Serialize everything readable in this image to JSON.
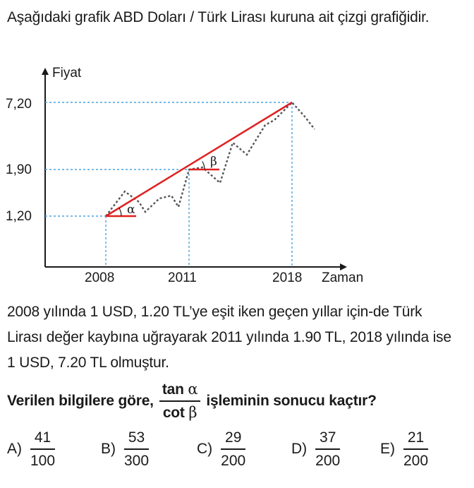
{
  "intro": "Aşağıdaki grafik ABD Doları / Türk Lirası kuruna ait çizgi grafiğidir.",
  "chart_data": {
    "type": "line",
    "ylabel": "Fiyat",
    "xlabel": "Zaman",
    "x_ticks": [
      "2008",
      "2011",
      "2018"
    ],
    "y_ticks": [
      "7,20",
      "1,90",
      "1,20"
    ],
    "points": [
      {
        "x": "2008",
        "y": 1.2
      },
      {
        "x": "2011",
        "y": 1.9
      },
      {
        "x": "2018",
        "y": 7.2
      }
    ],
    "angle_labels": [
      "α",
      "β"
    ],
    "colors": {
      "trend": "#e02020",
      "curve": "#555555",
      "guide": "#4aa3df",
      "axis": "#1a1a1a"
    }
  },
  "paragraph": "2008 yılında 1 USD, 1.20 TL’ye eşit iken geçen yıllar için-de Türk Lirası değer kaybına uğrayarak 2011 yılında 1.90 TL, 2018 yılında ise 1 USD, 7.20 TL olmuştur.",
  "question": {
    "prefix": "Verilen bilgilere göre,",
    "numerator_fn": "tan",
    "numerator_var": "α",
    "denominator_fn": "cot",
    "denominator_var": "β",
    "suffix": "işleminin sonucu kaçtır?"
  },
  "options": [
    {
      "letter": "A)",
      "num": "41",
      "den": "100"
    },
    {
      "letter": "B)",
      "num": "53",
      "den": "300"
    },
    {
      "letter": "C)",
      "num": "29",
      "den": "200"
    },
    {
      "letter": "D)",
      "num": "37",
      "den": "200"
    },
    {
      "letter": "E)",
      "num": "21",
      "den": "200"
    }
  ]
}
